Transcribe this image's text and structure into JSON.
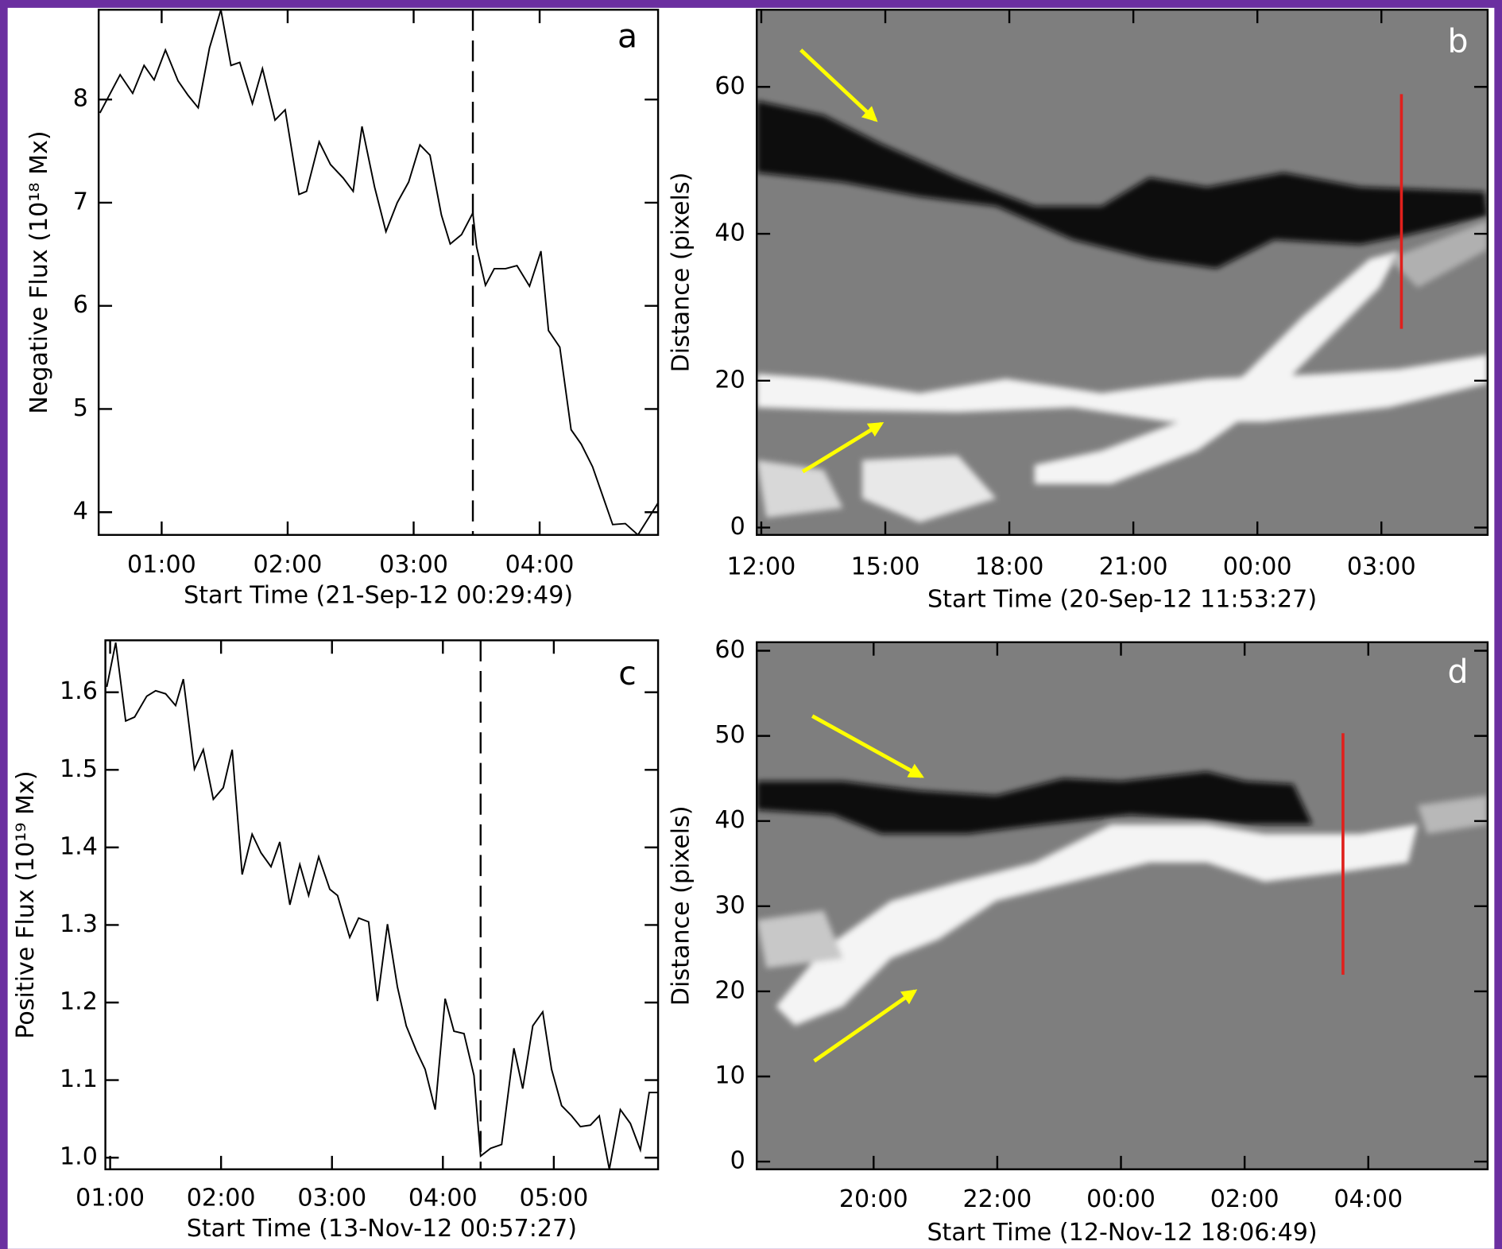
{
  "chart_data": [
    {
      "type": "line",
      "label": "a",
      "xlabel": "Start Time (21-Sep-12 00:29:49)",
      "ylabel": "Negative Flux (10¹⁸ Mx)",
      "color": "#000000",
      "x": [
        0.51,
        0.67,
        0.77,
        0.86,
        0.94,
        1.03,
        1.13,
        1.21,
        1.29,
        1.38,
        1.47,
        1.55,
        1.62,
        1.72,
        1.8,
        1.9,
        1.98,
        2.09,
        2.15,
        2.25,
        2.34,
        2.44,
        2.52,
        2.59,
        2.69,
        2.78,
        2.87,
        2.96,
        3.05,
        3.13,
        3.22,
        3.29,
        3.38,
        3.47,
        3.5,
        3.57,
        3.64,
        3.73,
        3.82,
        3.92,
        4.01,
        4.07,
        4.16,
        4.25,
        4.33,
        4.42,
        4.58,
        4.68,
        4.78,
        4.94
      ],
      "values": [
        7.87,
        8.24,
        8.06,
        8.33,
        8.19,
        8.48,
        8.18,
        8.04,
        7.92,
        8.5,
        8.87,
        8.33,
        8.36,
        7.96,
        8.3,
        7.8,
        7.9,
        7.08,
        7.11,
        7.59,
        7.37,
        7.24,
        7.11,
        7.74,
        7.15,
        6.72,
        7.0,
        7.2,
        7.56,
        7.46,
        6.88,
        6.6,
        6.69,
        6.9,
        6.57,
        6.2,
        6.36,
        6.36,
        6.39,
        6.19,
        6.53,
        5.76,
        5.6,
        4.8,
        4.66,
        4.44,
        3.88,
        3.89,
        3.78,
        4.09
      ],
      "vline": 3.47,
      "xlim": [
        0.5,
        4.94
      ],
      "ylim": [
        3.78,
        8.87
      ],
      "xticks": [
        {
          "value": 1,
          "label": "01:00"
        },
        {
          "value": 2,
          "label": "02:00"
        },
        {
          "value": 3,
          "label": "03:00"
        },
        {
          "value": 4,
          "label": "04:00"
        }
      ],
      "yticks": [
        4,
        5,
        6,
        7,
        8
      ]
    },
    {
      "type": "image",
      "label": "b",
      "xlabel": "Start Time (20-Sep-12 11:53:27)",
      "ylabel": "Distance (pixels)",
      "xlim": [
        11.89,
        29.57
      ],
      "ylim": [
        -1,
        70.5
      ],
      "xticks": [
        {
          "value": 12,
          "label": "12:00"
        },
        {
          "value": 15,
          "label": "15:00"
        },
        {
          "value": 18,
          "label": "18:00"
        },
        {
          "value": 21,
          "label": "21:00"
        },
        {
          "value": 24,
          "label": "00:00"
        },
        {
          "value": 27,
          "label": "03:00"
        }
      ],
      "yticks": [
        0,
        20,
        40,
        60
      ]
    },
    {
      "type": "line",
      "label": "c",
      "xlabel": "Start Time (13-Nov-12 00:57:27)",
      "ylabel": "Positive Flux (10¹⁹ Mx)",
      "color": "#000000",
      "x": [
        0.97,
        1.05,
        1.14,
        1.22,
        1.33,
        1.41,
        1.5,
        1.59,
        1.66,
        1.76,
        1.84,
        1.93,
        2.02,
        2.1,
        2.19,
        2.28,
        2.36,
        2.45,
        2.53,
        2.62,
        2.71,
        2.79,
        2.88,
        2.98,
        3.05,
        3.16,
        3.24,
        3.33,
        3.41,
        3.5,
        3.59,
        3.67,
        3.76,
        3.84,
        3.93,
        4.02,
        4.1,
        4.19,
        4.28,
        4.34,
        4.43,
        4.53,
        4.64,
        4.72,
        4.81,
        4.9,
        4.98,
        5.07,
        5.16,
        5.24,
        5.33,
        5.41,
        5.5,
        5.6,
        5.69,
        5.78,
        5.86,
        5.94
      ],
      "values": [
        1.607,
        1.664,
        1.563,
        1.568,
        1.595,
        1.602,
        1.598,
        1.583,
        1.617,
        1.501,
        1.526,
        1.462,
        1.477,
        1.526,
        1.365,
        1.417,
        1.393,
        1.375,
        1.407,
        1.326,
        1.378,
        1.338,
        1.388,
        1.346,
        1.338,
        1.284,
        1.309,
        1.304,
        1.202,
        1.301,
        1.22,
        1.17,
        1.138,
        1.114,
        1.062,
        1.205,
        1.163,
        1.16,
        1.106,
        1.002,
        1.012,
        1.017,
        1.141,
        1.089,
        1.17,
        1.188,
        1.114,
        1.067,
        1.054,
        1.04,
        1.042,
        1.054,
        0.985,
        1.062,
        1.044,
        1.01,
        1.084,
        1.084
      ],
      "vline": 4.34,
      "xlim": [
        0.957,
        5.94
      ],
      "ylim": [
        0.985,
        1.667
      ],
      "xticks": [
        {
          "value": 1,
          "label": "01:00"
        },
        {
          "value": 2,
          "label": "02:00"
        },
        {
          "value": 3,
          "label": "03:00"
        },
        {
          "value": 4,
          "label": "04:00"
        },
        {
          "value": 5,
          "label": "05:00"
        }
      ],
      "yticks": [
        {
          "value": 1,
          "label": "1.0"
        },
        1.1,
        1.2,
        1.3,
        1.4,
        1.5,
        1.6
      ]
    },
    {
      "type": "image",
      "label": "d",
      "xlabel": "Start Time (12-Nov-12 18:06:49)",
      "ylabel": "Distance (pixels)",
      "xlim": [
        18.11,
        29.93
      ],
      "ylim": [
        -0.9,
        61
      ],
      "xticks": [
        {
          "value": 20,
          "label": "20:00"
        },
        {
          "value": 22,
          "label": "22:00"
        },
        {
          "value": 24,
          "label": "00:00"
        },
        {
          "value": 26,
          "label": "02:00"
        },
        {
          "value": 28,
          "label": "04:00"
        }
      ],
      "yticks": [
        0,
        10,
        20,
        30,
        40,
        50,
        60
      ]
    }
  ]
}
